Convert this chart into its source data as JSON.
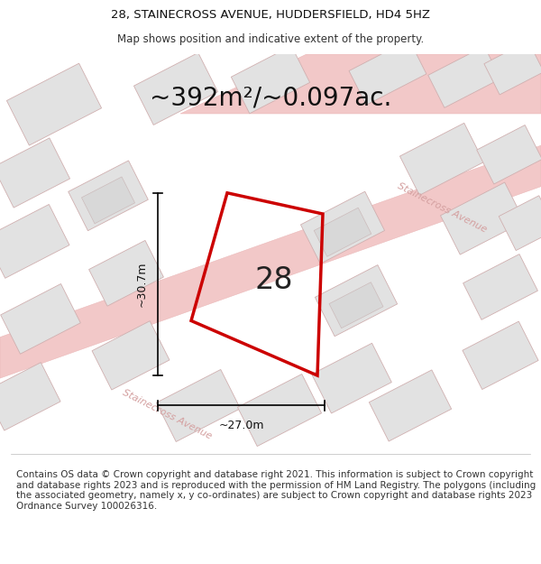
{
  "title_line1": "28, STAINECROSS AVENUE, HUDDERSFIELD, HD4 5HZ",
  "title_line2": "Map shows position and indicative extent of the property.",
  "area_label": "~392m²/~0.097ac.",
  "width_label": "~27.0m",
  "height_label": "~30.7m",
  "plot_number": "28",
  "footer_text": "Contains OS data © Crown copyright and database right 2021. This information is subject to Crown copyright and database rights 2023 and is reproduced with the permission of HM Land Registry. The polygons (including the associated geometry, namely x, y co-ordinates) are subject to Crown copyright and database rights 2023 Ordnance Survey 100026316.",
  "background_color": "#ffffff",
  "map_bg_color": "#f5f5f5",
  "plot_outline_color": "#cc0000",
  "bld_fill": "#e2e2e2",
  "bld_edge": "#d0b0b0",
  "road_fill": "#f2c8c8",
  "road_edge": "#e8b0b0",
  "street_color": "#d4a0a0",
  "title_fontsize": 9.5,
  "subtitle_fontsize": 8.5,
  "area_fontsize": 20,
  "dim_fontsize": 9,
  "plot_num_fontsize": 24,
  "footer_fontsize": 7.5
}
